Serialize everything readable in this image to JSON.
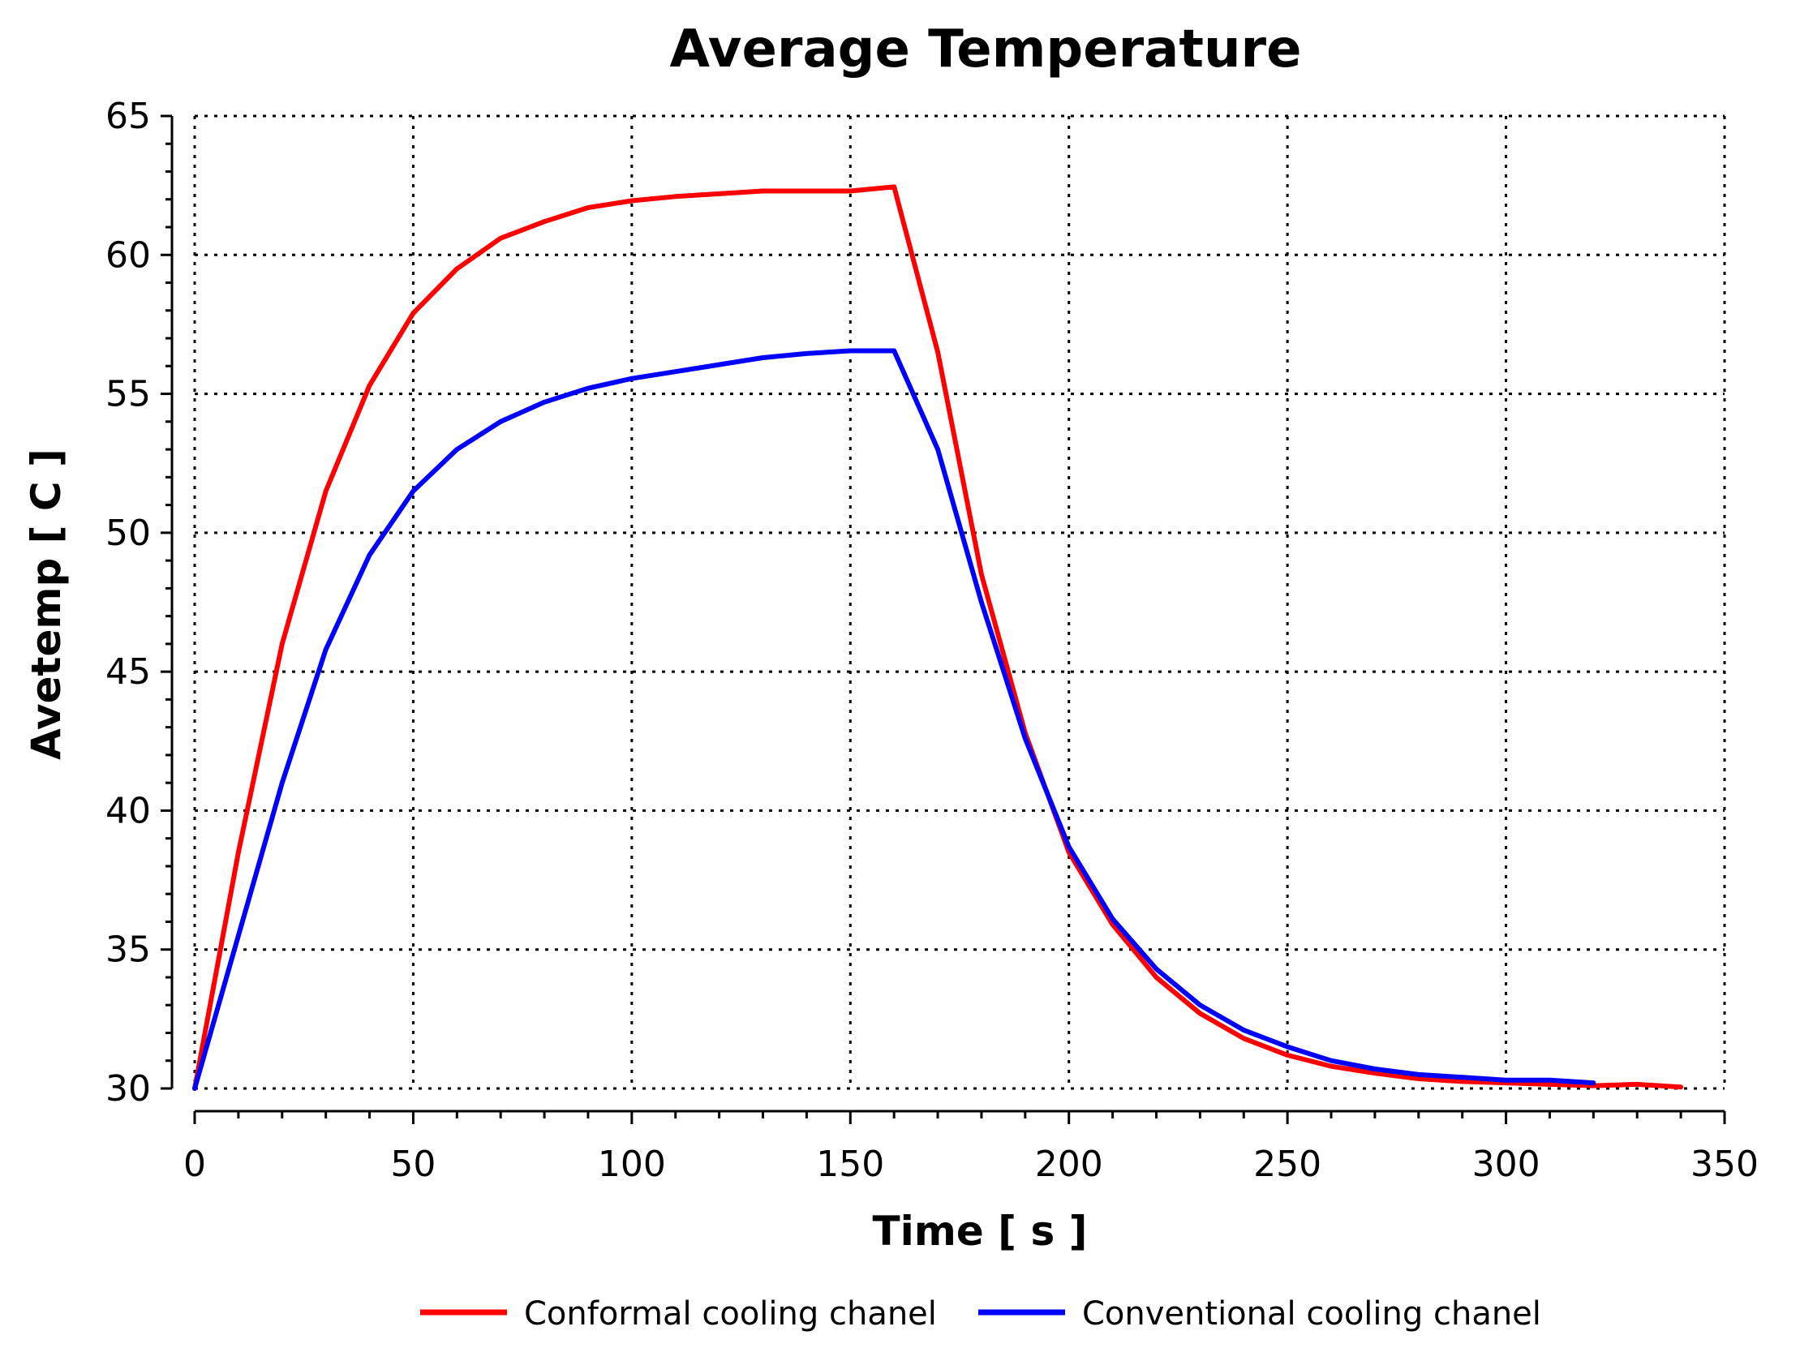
{
  "chart_data": {
    "type": "line",
    "title": "Average Temperature",
    "xlabel": "Time [ s ]",
    "ylabel": "Avetemp [ C ]",
    "xlim": [
      0,
      350
    ],
    "ylim": [
      30,
      65
    ],
    "xticks": [
      0,
      50,
      100,
      150,
      200,
      250,
      300,
      350
    ],
    "yticks": [
      30,
      35,
      40,
      45,
      50,
      55,
      60,
      65
    ],
    "grid": true,
    "legend_position": "bottom",
    "series": [
      {
        "name": "Conformal cooling chanel",
        "color": "#ff0000",
        "x": [
          0,
          10,
          20,
          30,
          40,
          50,
          60,
          70,
          80,
          90,
          100,
          110,
          120,
          130,
          140,
          150,
          160,
          170,
          180,
          190,
          200,
          210,
          220,
          230,
          240,
          250,
          260,
          270,
          280,
          290,
          300,
          310,
          320,
          330,
          340
        ],
        "y": [
          30.0,
          38.5,
          46.0,
          51.5,
          55.3,
          57.9,
          59.5,
          60.6,
          61.2,
          61.7,
          61.95,
          62.1,
          62.2,
          62.3,
          62.3,
          62.3,
          62.45,
          56.5,
          48.5,
          42.8,
          38.5,
          35.9,
          34.0,
          32.7,
          31.8,
          31.2,
          30.8,
          30.55,
          30.35,
          30.25,
          30.2,
          30.15,
          30.1,
          30.15,
          30.05
        ]
      },
      {
        "name": "Conventional cooling chanel",
        "color": "#0000ff",
        "x": [
          0,
          10,
          20,
          30,
          40,
          50,
          60,
          70,
          80,
          90,
          100,
          110,
          120,
          130,
          140,
          150,
          160,
          170,
          180,
          190,
          200,
          210,
          220,
          230,
          240,
          250,
          260,
          270,
          280,
          290,
          300,
          310,
          320
        ],
        "y": [
          30.0,
          35.5,
          41.0,
          45.8,
          49.2,
          51.5,
          53.0,
          54.0,
          54.7,
          55.2,
          55.55,
          55.8,
          56.05,
          56.3,
          56.45,
          56.55,
          56.55,
          53.0,
          47.5,
          42.6,
          38.7,
          36.1,
          34.3,
          33.0,
          32.1,
          31.5,
          31.0,
          30.7,
          30.5,
          30.4,
          30.3,
          30.3,
          30.2
        ]
      }
    ]
  }
}
